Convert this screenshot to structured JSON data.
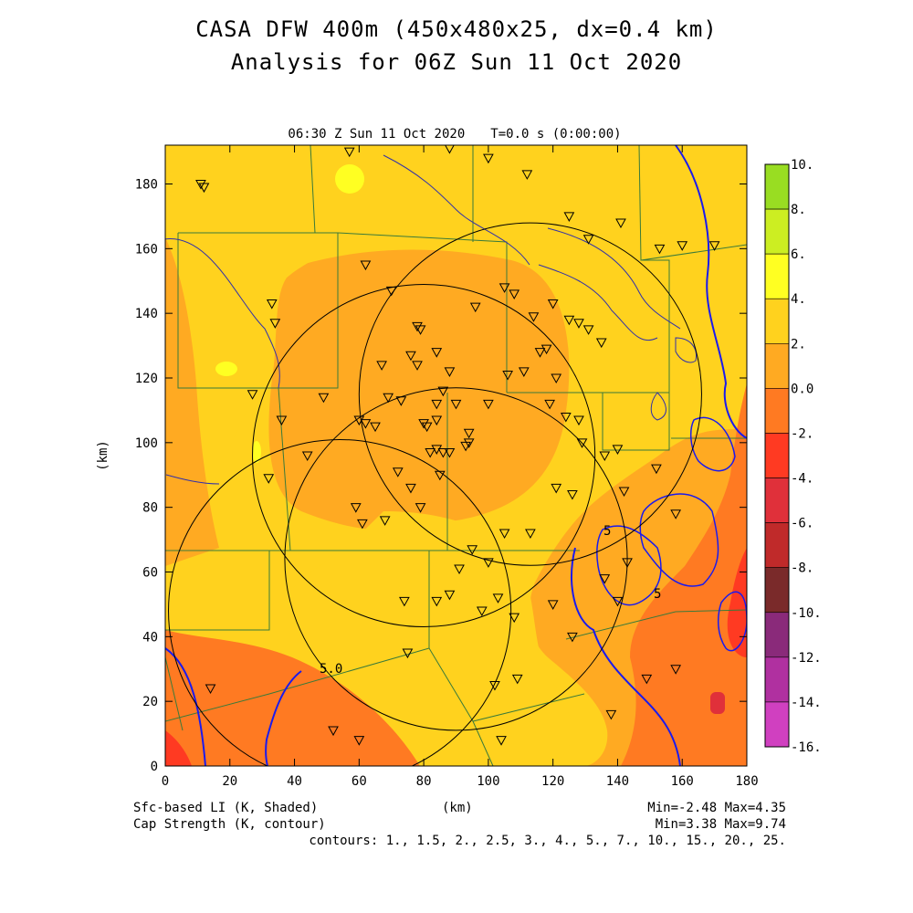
{
  "header": {
    "title_line1": "CASA DFW 400m (450x480x25, dx=0.4 km)",
    "title_line2": "Analysis for 06Z Sun 11 Oct 2020",
    "plot_time": "06:30 Z Sun 11 Oct 2020",
    "plot_time_label": "T=0.0 s (0:00:00)"
  },
  "axes": {
    "x_label": "(km)",
    "y_label": "(km)",
    "x_ticks": [
      "0",
      "20",
      "40",
      "60",
      "80",
      "100",
      "120",
      "140",
      "160",
      "180"
    ],
    "y_ticks": [
      "0",
      "20",
      "40",
      "60",
      "80",
      "100",
      "120",
      "140",
      "160",
      "180"
    ],
    "x_range": [
      0,
      180
    ],
    "y_range": [
      0,
      192
    ]
  },
  "colorbar": {
    "labels": [
      "10.",
      "8.",
      "6.",
      "4.",
      "2.",
      "0.0",
      "-2.",
      "-4.",
      "-6.",
      "-8.",
      "-10.",
      "-12.",
      "-14.",
      "-16."
    ],
    "colors": [
      "#99dd22",
      "#ccee22",
      "#ffff22",
      "#ffd21e",
      "#ffaa22",
      "#ff7a22",
      "#ff3a22",
      "#e0303a",
      "#c02a2a",
      "#7a2a2a",
      "#8a2a7a",
      "#b030a0",
      "#d040c0"
    ]
  },
  "footer": {
    "left_line1": "Sfc-based LI (K, Shaded)",
    "left_line2": "Cap Strength (K, contour)",
    "center_label": "(km)",
    "right_line1": "Min=-2.48 Max=4.35",
    "right_line2": "Min=3.38 Max=9.74",
    "contours": "contours: 1., 1.5, 2., 2.5, 3., 4., 5., 7., 10., 15., 20., 25."
  },
  "map_annotations": {
    "contour_label_a": "5.0",
    "contour_label_b": "5",
    "contour_label_c": "5"
  },
  "radars": [
    {
      "x": 113,
      "y": 115
    },
    {
      "x": 80,
      "y": 96
    },
    {
      "x": 54,
      "y": 48
    },
    {
      "x": 90,
      "y": 64
    }
  ],
  "radar_range_km": 53,
  "stations": [
    [
      11,
      180
    ],
    [
      12,
      179
    ],
    [
      57,
      190
    ],
    [
      88,
      191
    ],
    [
      100,
      188
    ],
    [
      112,
      183
    ],
    [
      125,
      170
    ],
    [
      131,
      163
    ],
    [
      141,
      168
    ],
    [
      153,
      160
    ],
    [
      160,
      161
    ],
    [
      170,
      161
    ],
    [
      33,
      143
    ],
    [
      34,
      137
    ],
    [
      62,
      155
    ],
    [
      70,
      147
    ],
    [
      78,
      136
    ],
    [
      79,
      135
    ],
    [
      84,
      128
    ],
    [
      96,
      142
    ],
    [
      105,
      148
    ],
    [
      108,
      146
    ],
    [
      114,
      139
    ],
    [
      120,
      143
    ],
    [
      125,
      138
    ],
    [
      131,
      135
    ],
    [
      128,
      137
    ],
    [
      135,
      131
    ],
    [
      27,
      115
    ],
    [
      36,
      107
    ],
    [
      44,
      96
    ],
    [
      49,
      114
    ],
    [
      60,
      107
    ],
    [
      62,
      106
    ],
    [
      65,
      105
    ],
    [
      67,
      124
    ],
    [
      69,
      114
    ],
    [
      73,
      113
    ],
    [
      76,
      127
    ],
    [
      78,
      124
    ],
    [
      84,
      112
    ],
    [
      86,
      116
    ],
    [
      88,
      122
    ],
    [
      90,
      112
    ],
    [
      80,
      106
    ],
    [
      81,
      105
    ],
    [
      84,
      107
    ],
    [
      84,
      98
    ],
    [
      82,
      97
    ],
    [
      86,
      97
    ],
    [
      88,
      97
    ],
    [
      93,
      99
    ],
    [
      94,
      100
    ],
    [
      94,
      103
    ],
    [
      100,
      112
    ],
    [
      106,
      121
    ],
    [
      111,
      122
    ],
    [
      116,
      128
    ],
    [
      118,
      129
    ],
    [
      119,
      112
    ],
    [
      121,
      120
    ],
    [
      124,
      108
    ],
    [
      128,
      107
    ],
    [
      129,
      100
    ],
    [
      32,
      89
    ],
    [
      59,
      80
    ],
    [
      61,
      75
    ],
    [
      68,
      76
    ],
    [
      72,
      91
    ],
    [
      76,
      86
    ],
    [
      79,
      80
    ],
    [
      85,
      90
    ],
    [
      105,
      72
    ],
    [
      113,
      72
    ],
    [
      121,
      86
    ],
    [
      126,
      84
    ],
    [
      136,
      96
    ],
    [
      140,
      98
    ],
    [
      142,
      85
    ],
    [
      152,
      92
    ],
    [
      158,
      78
    ],
    [
      95,
      67
    ],
    [
      100,
      63
    ],
    [
      91,
      61
    ],
    [
      84,
      51
    ],
    [
      74,
      51
    ],
    [
      75,
      35
    ],
    [
      88,
      53
    ],
    [
      98,
      48
    ],
    [
      103,
      52
    ],
    [
      108,
      46
    ],
    [
      120,
      50
    ],
    [
      126,
      40
    ],
    [
      136,
      58
    ],
    [
      143,
      63
    ],
    [
      140,
      51
    ],
    [
      102,
      25
    ],
    [
      109,
      27
    ],
    [
      14,
      24
    ],
    [
      52,
      11
    ],
    [
      60,
      8
    ],
    [
      104,
      8
    ],
    [
      138,
      16
    ],
    [
      149,
      27
    ],
    [
      158,
      30
    ]
  ]
}
